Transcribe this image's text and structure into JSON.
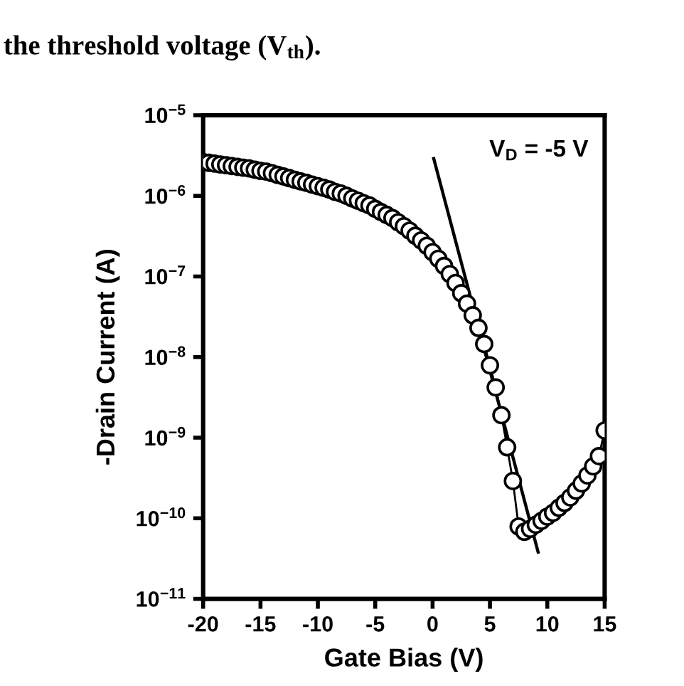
{
  "chart_data": {
    "type": "line",
    "xlabel": "Gate Bias (V)",
    "ylabel": "-Drain Current (A)",
    "log": "y",
    "xlim": [
      -20,
      15
    ],
    "xticks": [
      -20,
      -15,
      -10,
      -5,
      0,
      5,
      10,
      15
    ],
    "ylim": [
      1e-11,
      1e-05
    ],
    "yticks": [
      {
        "value": 1e-11,
        "label": "10$^{−11}$"
      },
      {
        "value": 1e-10,
        "label": "10$^{−10}$"
      },
      {
        "value": 1e-09,
        "label": "10$^{−9}$"
      },
      {
        "value": 1e-08,
        "label": "10$^{−8}$"
      },
      {
        "value": 1e-07,
        "label": "10$^{−7}$"
      },
      {
        "value": 1e-06,
        "label": "10$^{−6}$"
      },
      {
        "value": 1e-05,
        "label": "10$^{−5}$"
      }
    ],
    "grid": false,
    "legend": false,
    "series": [
      {
        "marker": "circle",
        "line_style": "solid",
        "color": "#000000",
        "x": [
          -20,
          -19.5,
          -19,
          -18.5,
          -18,
          -17.5,
          -17,
          -16.5,
          -16,
          -15.5,
          -15,
          -14.5,
          -14,
          -13.5,
          -13,
          -12.5,
          -12,
          -11.5,
          -11,
          -10.5,
          -10,
          -9.5,
          -9,
          -8.5,
          -8,
          -7.5,
          -7,
          -6.5,
          -6,
          -5.5,
          -5,
          -4.5,
          -4,
          -3.5,
          -3,
          -2.5,
          -2,
          -1.5,
          -1,
          -0.5,
          0,
          0.5,
          1,
          1.5,
          2,
          2.5,
          3,
          3.5,
          4,
          4.5,
          5,
          5.5,
          6,
          6.5,
          7,
          7.5,
          8,
          8.5,
          9,
          9.5,
          10,
          10.5,
          11,
          11.5,
          12,
          12.5,
          13,
          13.5,
          14,
          14.5,
          15
        ],
        "values": [
          2.63e-06,
          2.57e-06,
          2.51e-06,
          2.45e-06,
          2.4e-06,
          2.34e-06,
          2.29e-06,
          2.24e-06,
          2.19e-06,
          2.11e-06,
          2.04e-06,
          2e-06,
          1.91e-06,
          1.82e-06,
          1.74e-06,
          1.66e-06,
          1.58e-06,
          1.51e-06,
          1.45e-06,
          1.38e-06,
          1.32e-06,
          1.26e-06,
          1.2e-06,
          1.12e-06,
          1.07e-06,
          1e-06,
          9.3e-07,
          8.7e-07,
          8.1e-07,
          7.6e-07,
          6.9e-07,
          6.3e-07,
          5.8e-07,
          5.3e-07,
          4.7e-07,
          4.2e-07,
          3.7e-07,
          3.2e-07,
          2.8e-07,
          2.4e-07,
          2e-07,
          1.66e-07,
          1.35e-07,
          1.07e-07,
          8.3e-08,
          6.2e-08,
          4.6e-08,
          3.3e-08,
          2.3e-08,
          1.45e-08,
          7.9e-09,
          4.2e-09,
          1.9e-09,
          7.6e-10,
          2.9e-10,
          7.9e-11,
          6.8e-11,
          7.4e-11,
          8.3e-11,
          9.3e-11,
          1.05e-10,
          1.17e-10,
          1.35e-10,
          1.55e-10,
          1.82e-10,
          2.2e-10,
          2.7e-10,
          3.4e-10,
          4.4e-10,
          5.9e-10,
          1.23e-09
        ]
      },
      {
        "marker": "none",
        "line_style": "solid",
        "color": "#000000",
        "x": [
          0.1,
          9.2
        ],
        "values": [
          2.9e-06,
          3.8e-11
        ]
      }
    ],
    "annotations": [
      "V$_{D}$ = -5 V",
      "the threshold voltage (V$_{th}$)."
    ]
  }
}
